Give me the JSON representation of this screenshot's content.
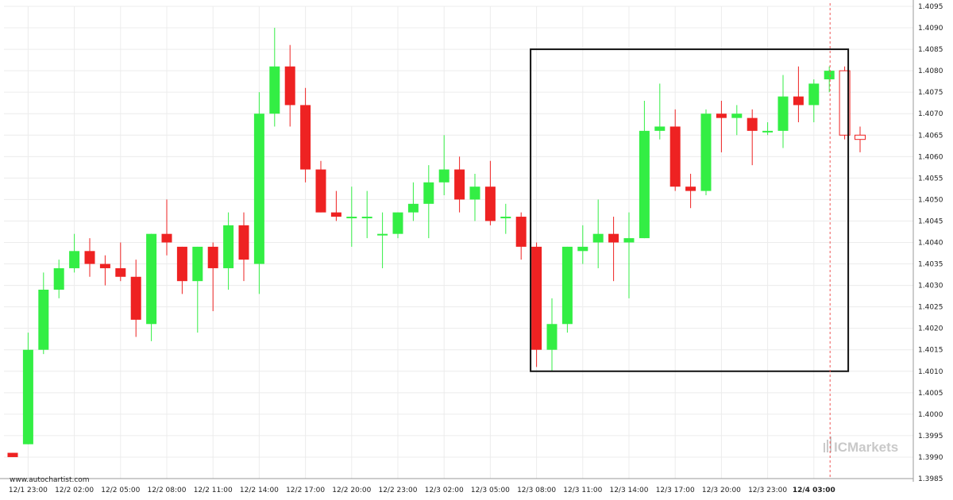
{
  "source_label": "www.autochartist.com",
  "watermark": {
    "text": "ICMarkets"
  },
  "colors": {
    "bull": "#33ee44",
    "bear": "#ee2222",
    "grid": "#ececec",
    "axis": "#999999",
    "pattern_box": "#111111",
    "forecast_candle": "#ee2222",
    "current_marker": "#ee5555"
  },
  "chart_data": {
    "type": "candlestick",
    "title": "",
    "xlabel": "",
    "ylabel": "",
    "ylim": [
      1.3985,
      1.4095
    ],
    "y_ticks": [
      "1.4095",
      "1.4090",
      "1.4085",
      "1.4080",
      "1.4075",
      "1.4070",
      "1.4065",
      "1.4060",
      "1.4055",
      "1.4050",
      "1.4045",
      "1.4040",
      "1.4035",
      "1.4030",
      "1.4025",
      "1.4020",
      "1.4015",
      "1.4010",
      "1.4005",
      "1.4000",
      "1.3995",
      "1.3990",
      "1.3985"
    ],
    "x_ticks": [
      {
        "label": "12/1 23:00",
        "index": 1
      },
      {
        "label": "12/2 02:00",
        "index": 4
      },
      {
        "label": "12/2 05:00",
        "index": 7
      },
      {
        "label": "12/2 08:00",
        "index": 10
      },
      {
        "label": "12/2 11:00",
        "index": 13
      },
      {
        "label": "12/2 14:00",
        "index": 16
      },
      {
        "label": "12/2 17:00",
        "index": 19
      },
      {
        "label": "12/2 20:00",
        "index": 22
      },
      {
        "label": "12/2 23:00",
        "index": 25
      },
      {
        "label": "12/3 02:00",
        "index": 28
      },
      {
        "label": "12/3 05:00",
        "index": 31
      },
      {
        "label": "12/3 08:00",
        "index": 34
      },
      {
        "label": "12/3 11:00",
        "index": 37
      },
      {
        "label": "12/3 14:00",
        "index": 40
      },
      {
        "label": "12/3 17:00",
        "index": 43
      },
      {
        "label": "12/3 20:00",
        "index": 46
      },
      {
        "label": "12/3 23:00",
        "index": 49
      },
      {
        "label": "12/4 03:00",
        "index": 52,
        "bold": true
      }
    ],
    "candles": [
      {
        "o": 1.3991,
        "h": 1.3991,
        "l": 1.399,
        "c": 1.399
      },
      {
        "o": 1.3993,
        "h": 1.4019,
        "l": 1.3993,
        "c": 1.4015
      },
      {
        "o": 1.4015,
        "h": 1.4033,
        "l": 1.4014,
        "c": 1.4029
      },
      {
        "o": 1.4029,
        "h": 1.4036,
        "l": 1.4027,
        "c": 1.4034
      },
      {
        "o": 1.4034,
        "h": 1.4042,
        "l": 1.4033,
        "c": 1.4038
      },
      {
        "o": 1.4038,
        "h": 1.4041,
        "l": 1.4032,
        "c": 1.4035
      },
      {
        "o": 1.4035,
        "h": 1.4037,
        "l": 1.403,
        "c": 1.4034
      },
      {
        "o": 1.4034,
        "h": 1.404,
        "l": 1.4031,
        "c": 1.4032
      },
      {
        "o": 1.4032,
        "h": 1.4036,
        "l": 1.4018,
        "c": 1.4022
      },
      {
        "o": 1.4021,
        "h": 1.4042,
        "l": 1.4017,
        "c": 1.4042
      },
      {
        "o": 1.4042,
        "h": 1.405,
        "l": 1.4037,
        "c": 1.404
      },
      {
        "o": 1.4039,
        "h": 1.4039,
        "l": 1.4028,
        "c": 1.4031
      },
      {
        "o": 1.4031,
        "h": 1.4039,
        "l": 1.4019,
        "c": 1.4039
      },
      {
        "o": 1.4039,
        "h": 1.404,
        "l": 1.4024,
        "c": 1.4034
      },
      {
        "o": 1.4034,
        "h": 1.4047,
        "l": 1.4029,
        "c": 1.4044
      },
      {
        "o": 1.4044,
        "h": 1.4047,
        "l": 1.4031,
        "c": 1.4036
      },
      {
        "o": 1.4035,
        "h": 1.4075,
        "l": 1.4028,
        "c": 1.407
      },
      {
        "o": 1.407,
        "h": 1.409,
        "l": 1.4067,
        "c": 1.4081
      },
      {
        "o": 1.4081,
        "h": 1.4086,
        "l": 1.4067,
        "c": 1.4072
      },
      {
        "o": 1.4072,
        "h": 1.4076,
        "l": 1.4054,
        "c": 1.4057
      },
      {
        "o": 1.4057,
        "h": 1.4059,
        "l": 1.4047,
        "c": 1.4047
      },
      {
        "o": 1.4047,
        "h": 1.4052,
        "l": 1.4045,
        "c": 1.4046
      },
      {
        "o": 1.4046,
        "h": 1.4053,
        "l": 1.4039,
        "c": 1.4046
      },
      {
        "o": 1.4046,
        "h": 1.4052,
        "l": 1.4041,
        "c": 1.4046
      },
      {
        "o": 1.4042,
        "h": 1.4047,
        "l": 1.4034,
        "c": 1.4042
      },
      {
        "o": 1.4042,
        "h": 1.4047,
        "l": 1.4041,
        "c": 1.4047
      },
      {
        "o": 1.4047,
        "h": 1.4054,
        "l": 1.4045,
        "c": 1.4049
      },
      {
        "o": 1.4049,
        "h": 1.4058,
        "l": 1.4041,
        "c": 1.4054
      },
      {
        "o": 1.4054,
        "h": 1.4065,
        "l": 1.4051,
        "c": 1.4057
      },
      {
        "o": 1.4057,
        "h": 1.406,
        "l": 1.4047,
        "c": 1.405
      },
      {
        "o": 1.405,
        "h": 1.4056,
        "l": 1.4045,
        "c": 1.4053
      },
      {
        "o": 1.4053,
        "h": 1.4059,
        "l": 1.4044,
        "c": 1.4045
      },
      {
        "o": 1.4046,
        "h": 1.4049,
        "l": 1.4042,
        "c": 1.4046
      },
      {
        "o": 1.4046,
        "h": 1.4047,
        "l": 1.4036,
        "c": 1.4039
      },
      {
        "o": 1.4039,
        "h": 1.404,
        "l": 1.4011,
        "c": 1.4015
      },
      {
        "o": 1.4015,
        "h": 1.4027,
        "l": 1.401,
        "c": 1.4021
      },
      {
        "o": 1.4021,
        "h": 1.4039,
        "l": 1.4019,
        "c": 1.4039
      },
      {
        "o": 1.4038,
        "h": 1.4044,
        "l": 1.4035,
        "c": 1.4039
      },
      {
        "o": 1.404,
        "h": 1.405,
        "l": 1.4034,
        "c": 1.4042
      },
      {
        "o": 1.4042,
        "h": 1.4046,
        "l": 1.4031,
        "c": 1.404
      },
      {
        "o": 1.404,
        "h": 1.4047,
        "l": 1.4027,
        "c": 1.4041
      },
      {
        "o": 1.4041,
        "h": 1.4073,
        "l": 1.4041,
        "c": 1.4066
      },
      {
        "o": 1.4066,
        "h": 1.4077,
        "l": 1.4064,
        "c": 1.4067
      },
      {
        "o": 1.4067,
        "h": 1.4071,
        "l": 1.4052,
        "c": 1.4053
      },
      {
        "o": 1.4053,
        "h": 1.4056,
        "l": 1.4048,
        "c": 1.4052
      },
      {
        "o": 1.4052,
        "h": 1.4071,
        "l": 1.4051,
        "c": 1.407
      },
      {
        "o": 1.407,
        "h": 1.4073,
        "l": 1.4061,
        "c": 1.4069
      },
      {
        "o": 1.4069,
        "h": 1.4072,
        "l": 1.4065,
        "c": 1.407
      },
      {
        "o": 1.4069,
        "h": 1.4071,
        "l": 1.4058,
        "c": 1.4066
      },
      {
        "o": 1.4066,
        "h": 1.4068,
        "l": 1.4065,
        "c": 1.4066
      },
      {
        "o": 1.4066,
        "h": 1.4079,
        "l": 1.4062,
        "c": 1.4074
      },
      {
        "o": 1.4074,
        "h": 1.4081,
        "l": 1.4068,
        "c": 1.4072
      },
      {
        "o": 1.4072,
        "h": 1.4078,
        "l": 1.4068,
        "c": 1.4077
      },
      {
        "o": 1.4078,
        "h": 1.4081,
        "l": 1.4075,
        "c": 1.408
      }
    ],
    "forecast_candles": [
      {
        "o": 1.408,
        "h": 1.4081,
        "l": 1.4064,
        "c": 1.4065
      },
      {
        "o": 1.4064,
        "h": 1.4067,
        "l": 1.4061,
        "c": 1.4065
      }
    ],
    "pattern_box": {
      "start_index": 34,
      "end_index": 54,
      "high": 1.4085,
      "low": 1.401
    },
    "current_time_index": 53
  }
}
